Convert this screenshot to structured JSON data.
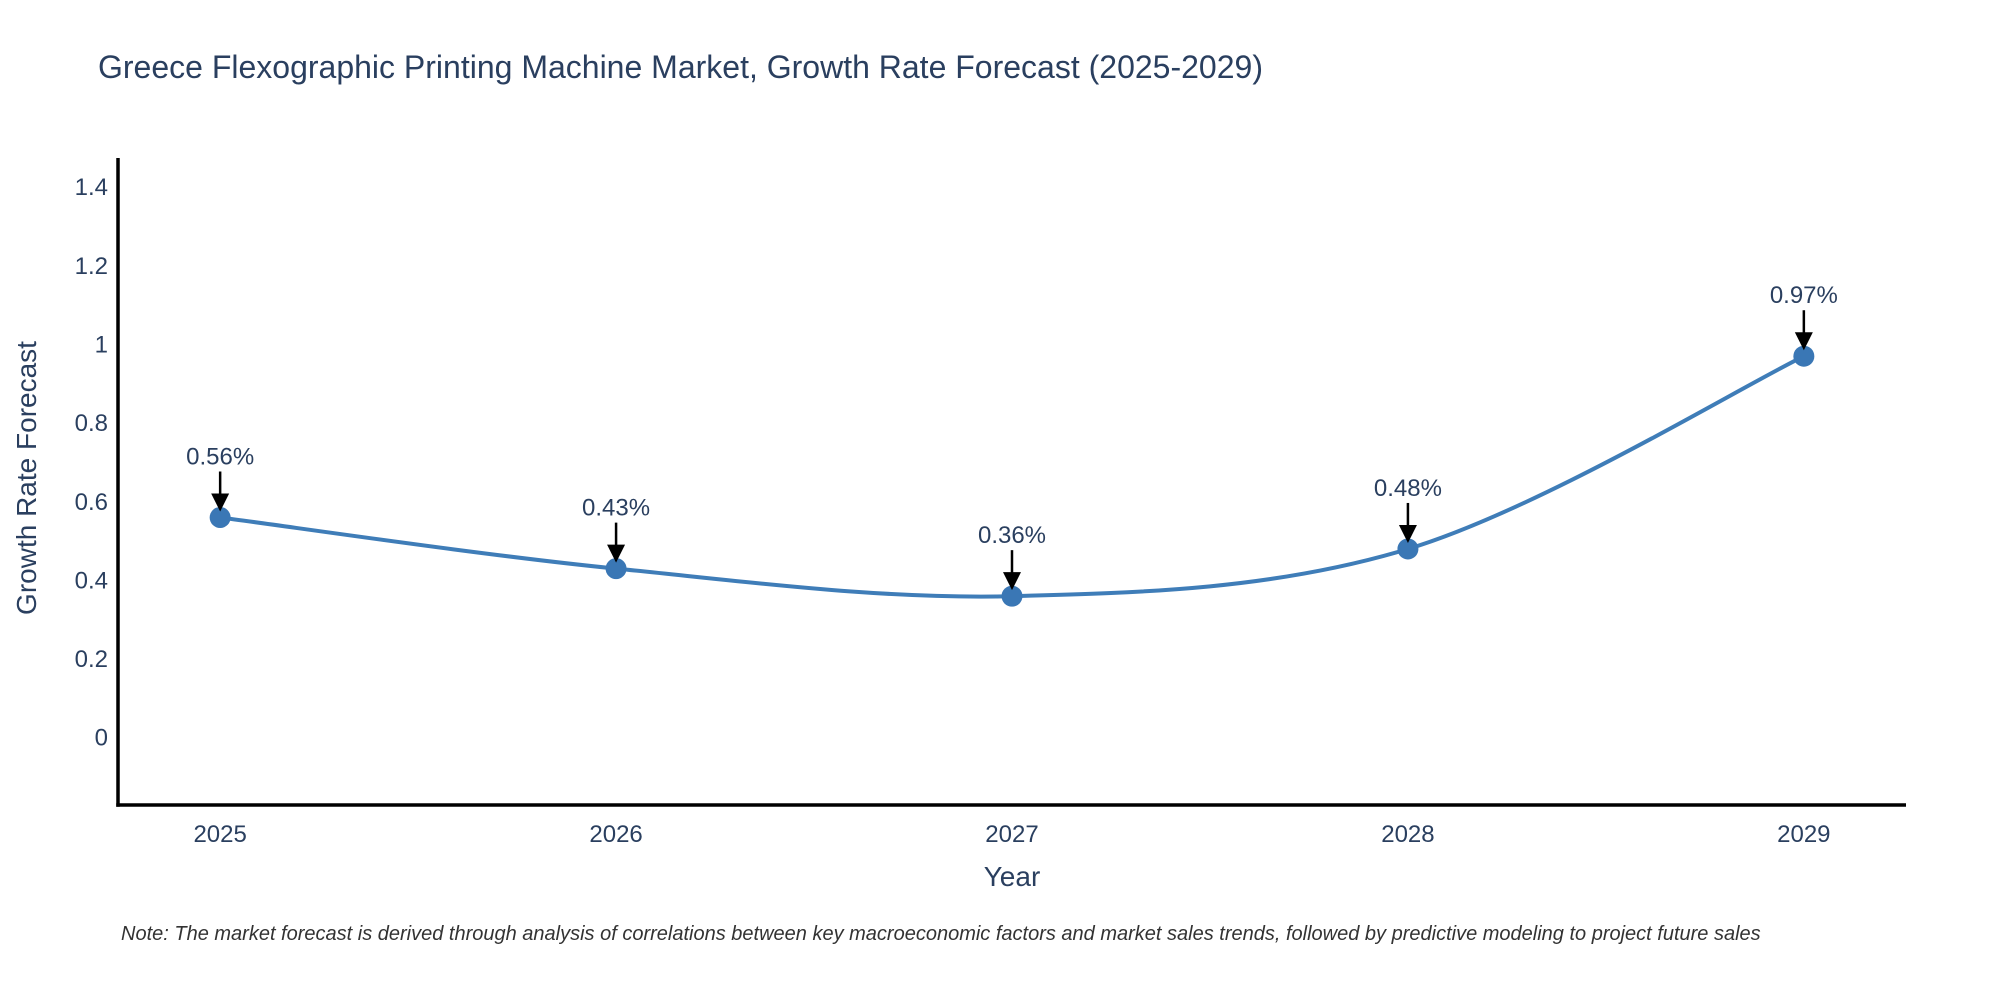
{
  "title": "Greece Flexographic Printing Machine Market, Growth Rate Forecast (2025-2029)",
  "note": "Note: The market forecast is derived through analysis of correlations between key macroeconomic factors and market sales trends, followed by predictive modeling to project future sales",
  "chart_data": {
    "type": "line",
    "title": "Greece Flexographic Printing Machine Market, Growth Rate Forecast (2025-2029)",
    "x": [
      2025,
      2026,
      2027,
      2028,
      2029
    ],
    "x_tick_labels": [
      "2025",
      "2026",
      "2027",
      "2028",
      "2029"
    ],
    "series": [
      {
        "name": "Growth Rate Forecast",
        "values": [
          0.56,
          0.43,
          0.36,
          0.48,
          0.97
        ]
      }
    ],
    "point_labels": [
      "0.56%",
      "0.43%",
      "0.36%",
      "0.48%",
      "0.97%"
    ],
    "xlabel": "Year",
    "ylabel": "Growth Rate Forecast",
    "y_ticks": [
      0,
      0.2,
      0.4,
      0.6,
      0.8,
      1,
      1.2,
      1.4
    ],
    "y_tick_labels": [
      "0",
      "0.2",
      "0.4",
      "0.6",
      "0.8",
      "1",
      "1.2",
      "1.4"
    ],
    "ylim": [
      -0.171,
      1.474
    ],
    "xlim": [
      2024.742,
      2029.258
    ],
    "grid": false,
    "legend": "none",
    "line_shape": "spline",
    "colors": {
      "line": "#3f7db8",
      "marker": "#3a77b5",
      "axis": "#000000",
      "text": "#2a3f5f",
      "arrow": "#000000",
      "note_text": "#333333",
      "background": "#ffffff"
    }
  }
}
